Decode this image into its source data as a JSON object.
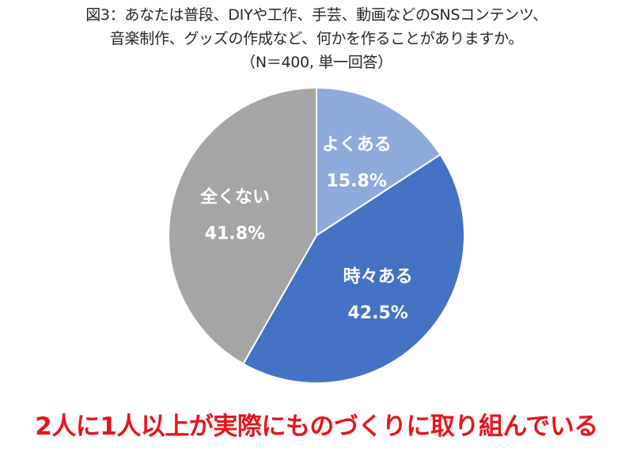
{
  "chart_data": {
    "type": "pie",
    "title_lines": [
      "図3：あなたは普段、DIYや工作、手芸、動画などのSNSコンテンツ、",
      "音楽制作、グッズの作成など、何かを作ることがありますか。",
      "（N＝400, 単一回答）"
    ],
    "slices": [
      {
        "label": "よくある",
        "value": 15.8,
        "value_label": "15.8%",
        "color": "#8eaadb"
      },
      {
        "label": "時々ある",
        "value": 42.5,
        "value_label": "42.5%",
        "color": "#4472c4"
      },
      {
        "label": "全くない",
        "value": 41.8,
        "value_label": "41.8%",
        "color": "#a5a5a5"
      }
    ],
    "start": "12 o'clock",
    "direction": "clockwise",
    "legend": "none",
    "data_labels": "inside"
  },
  "footer": {
    "text": "2人に1人以上が実際にものづくりに取り組んでいる",
    "color": "#e8141b"
  }
}
